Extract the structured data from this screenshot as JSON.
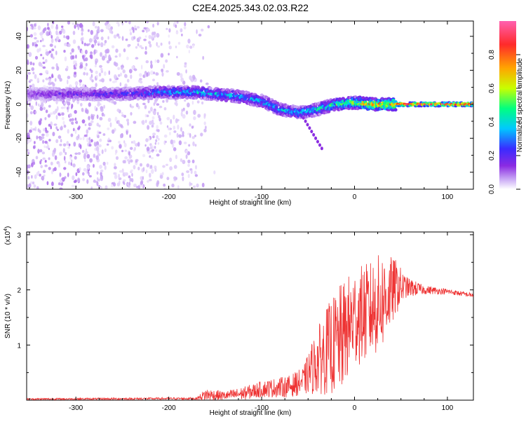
{
  "title": "C2E4.2025.343.02.03.R22",
  "colorbar": {
    "label": "Normalized spectral amplitude",
    "ticks": [
      "0.0",
      "0.2",
      "0.4",
      "0.6",
      "0.8"
    ],
    "tick_values": [
      0.0,
      0.2,
      0.4,
      0.6,
      0.8
    ]
  },
  "chart_data": [
    {
      "type": "heatmap",
      "xlabel": "Height of straight line (km)",
      "ylabel": "Frequency (Hz)",
      "xlim": [
        -353,
        128
      ],
      "ylim": [
        -50,
        49
      ],
      "x_ticks": [
        -300,
        -200,
        -100,
        0,
        100
      ],
      "x_tick_labels": [
        "-300",
        "-200",
        "-100",
        "0",
        "100"
      ],
      "y_ticks": [
        -40,
        -20,
        0,
        20,
        40
      ],
      "y_tick_labels": [
        "-40",
        "-20",
        "0",
        "20",
        "40"
      ],
      "value_range": [
        0,
        1
      ],
      "colormap": [
        "#ffffff",
        "#c9a8f5",
        "#8a2be2",
        "#3a2bff",
        "#00c8ff",
        "#00ff80",
        "#c8ff00",
        "#ffa500",
        "#ff2a2a",
        "#ff60b0"
      ],
      "ridge": [
        {
          "x": -350,
          "freq": 6,
          "amp": 0.25
        },
        {
          "x": -300,
          "freq": 6,
          "amp": 0.3
        },
        {
          "x": -250,
          "freq": 6,
          "amp": 0.35
        },
        {
          "x": -210,
          "freq": 7,
          "amp": 0.45
        },
        {
          "x": -170,
          "freq": 7,
          "amp": 0.5
        },
        {
          "x": -130,
          "freq": 5,
          "amp": 0.5
        },
        {
          "x": -100,
          "freq": 2,
          "amp": 0.5
        },
        {
          "x": -80,
          "freq": -3,
          "amp": 0.5
        },
        {
          "x": -60,
          "freq": -5,
          "amp": 0.5
        },
        {
          "x": -40,
          "freq": -3,
          "amp": 0.55
        },
        {
          "x": -20,
          "freq": 0,
          "amp": 0.6
        },
        {
          "x": 0,
          "freq": 1,
          "amp": 0.75
        },
        {
          "x": 20,
          "freq": 0,
          "amp": 0.85
        },
        {
          "x": 50,
          "freq": 0,
          "amp": 0.95
        },
        {
          "x": 128,
          "freq": 0,
          "amp": 1.0
        }
      ]
    },
    {
      "type": "line",
      "xlabel": "Height of straight line (km)",
      "ylabel": "SNR (10 * v/v)",
      "y_multiplier": "(x10",
      "y_multiplier_exp": "4",
      "y_multiplier_close": ")",
      "xlim": [
        -353,
        128
      ],
      "ylim": [
        0,
        3.05
      ],
      "x_ticks": [
        -300,
        -200,
        -100,
        0,
        100
      ],
      "x_tick_labels": [
        "-300",
        "-200",
        "-100",
        "0",
        "100"
      ],
      "y_ticks": [
        1,
        2,
        3
      ],
      "y_tick_labels": [
        "1",
        "2",
        "3"
      ],
      "color": "#ee3333",
      "envelope": [
        {
          "x": -353,
          "mean": 0.02,
          "amp": 0.015
        },
        {
          "x": -170,
          "mean": 0.03,
          "amp": 0.02
        },
        {
          "x": -160,
          "mean": 0.1,
          "amp": 0.12
        },
        {
          "x": -140,
          "mean": 0.08,
          "amp": 0.08
        },
        {
          "x": -120,
          "mean": 0.12,
          "amp": 0.12
        },
        {
          "x": -100,
          "mean": 0.2,
          "amp": 0.15
        },
        {
          "x": -70,
          "mean": 0.25,
          "amp": 0.2
        },
        {
          "x": -55,
          "mean": 0.35,
          "amp": 0.25
        },
        {
          "x": -45,
          "mean": 0.6,
          "amp": 0.5
        },
        {
          "x": -30,
          "mean": 0.9,
          "amp": 0.8
        },
        {
          "x": -15,
          "mean": 1.1,
          "amp": 1.0
        },
        {
          "x": 0,
          "mean": 1.5,
          "amp": 0.9
        },
        {
          "x": 15,
          "mean": 1.6,
          "amp": 0.9
        },
        {
          "x": 30,
          "mean": 1.8,
          "amp": 0.9
        },
        {
          "x": 45,
          "mean": 2.05,
          "amp": 0.5
        },
        {
          "x": 55,
          "mean": 2.05,
          "amp": 0.2
        },
        {
          "x": 75,
          "mean": 2.0,
          "amp": 0.08
        },
        {
          "x": 100,
          "mean": 1.97,
          "amp": 0.05
        },
        {
          "x": 128,
          "mean": 1.9,
          "amp": 0.04
        }
      ]
    }
  ]
}
